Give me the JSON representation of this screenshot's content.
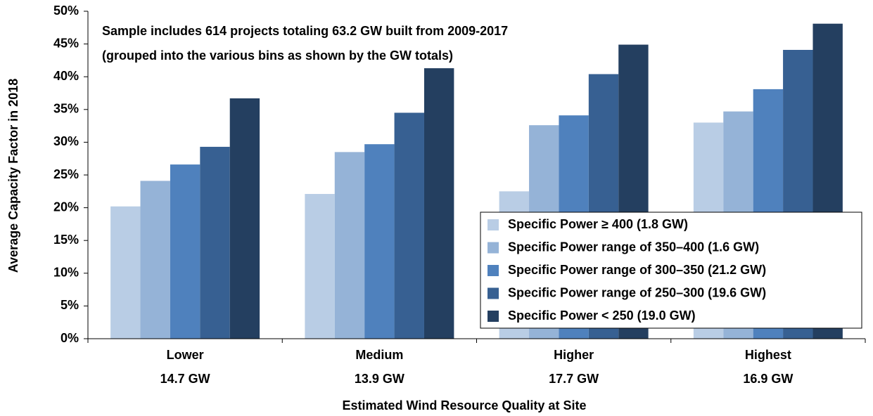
{
  "chart_data": {
    "type": "bar",
    "annotations": [
      "Sample includes 614 projects totaling 63.2 GW built from 2009-2017",
      "(grouped into the various bins as shown by the GW totals)"
    ],
    "x_label": "Estimated Wind Resource Quality at Site",
    "y_label": "Average Capacity Factor in 2018",
    "categories": [
      [
        "Lower",
        "14.7 GW"
      ],
      [
        "Medium",
        "13.9 GW"
      ],
      [
        "Higher",
        "17.7 GW"
      ],
      [
        "Highest",
        "16.9 GW"
      ]
    ],
    "series": [
      {
        "name": "Specific Power ≥ 400 (1.8 GW)",
        "color": "#b9cde5",
        "values": [
          20.2,
          22.1,
          22.5,
          33.0
        ]
      },
      {
        "name": "Specific Power range of 350–400 (1.6 GW)",
        "color": "#95b3d7",
        "values": [
          24.1,
          28.5,
          32.6,
          34.7
        ]
      },
      {
        "name": "Specific Power range of 300–350 (21.2 GW)",
        "color": "#4f81bd",
        "values": [
          26.6,
          29.7,
          34.1,
          38.1
        ]
      },
      {
        "name": "Specific Power range of 250–300 (19.6 GW)",
        "color": "#376092",
        "values": [
          29.3,
          34.5,
          40.4,
          44.1
        ]
      },
      {
        "name": "Specific Power < 250 (19.0 GW)",
        "color": "#243f60",
        "values": [
          36.7,
          41.3,
          44.9,
          48.1
        ]
      }
    ],
    "ylim": [
      0,
      50
    ],
    "yticks": [
      {
        "value": 0,
        "label": "0%"
      },
      {
        "value": 5,
        "label": "5%"
      },
      {
        "value": 10,
        "label": "10%"
      },
      {
        "value": 15,
        "label": "15%"
      },
      {
        "value": 20,
        "label": "20%"
      },
      {
        "value": 25,
        "label": "25%"
      },
      {
        "value": 30,
        "label": "30%"
      },
      {
        "value": 35,
        "label": "35%"
      },
      {
        "value": 40,
        "label": "40%"
      },
      {
        "value": 45,
        "label": "45%"
      },
      {
        "value": 50,
        "label": "50%"
      }
    ],
    "legend_position": "lower right"
  }
}
